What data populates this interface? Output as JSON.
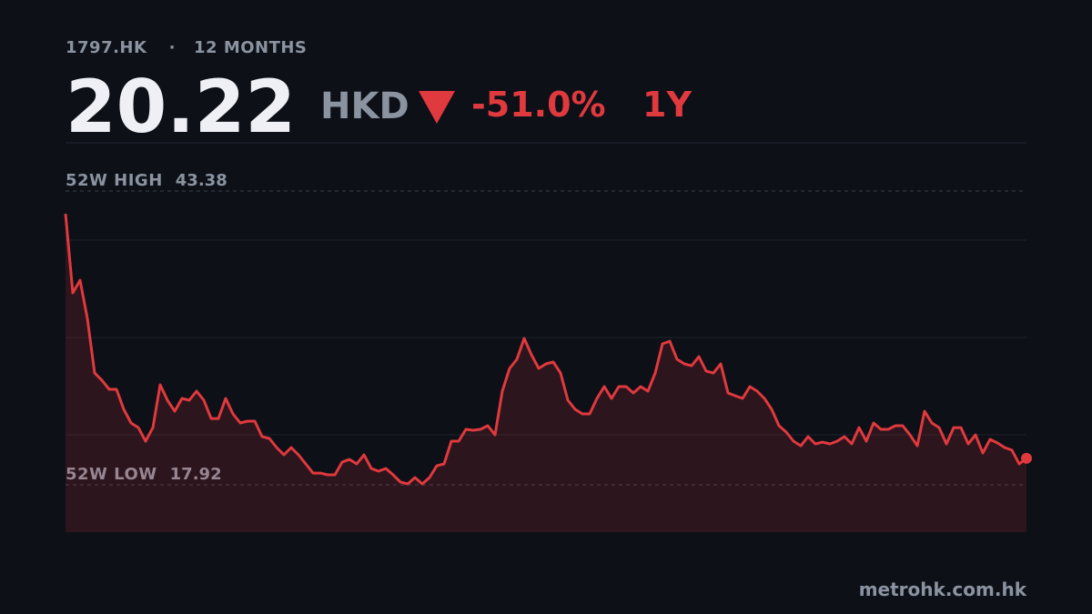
{
  "chart_data": {
    "type": "line",
    "ticker": "1797.HK",
    "separator": "·",
    "period": "12 MONTHS",
    "price": 20.22,
    "currency": "HKD",
    "change": "-51.0%",
    "range": "1Y",
    "high_label": "52W HIGH",
    "high": 43.38,
    "low_label": "52W LOW",
    "low": 17.92,
    "source": "metrohk.com.hk",
    "color": "#e0393e",
    "grid": true,
    "ylim": [
      13.82,
      47.56
    ],
    "values": [
      41.41,
      34.55,
      35.65,
      32.34,
      27.61,
      26.98,
      26.2,
      26.2,
      24.46,
      23.28,
      22.88,
      21.7,
      22.88,
      26.59,
      25.25,
      24.3,
      25.41,
      25.25,
      26.04,
      25.25,
      23.67,
      23.67,
      25.41,
      24.07,
      23.28,
      23.44,
      23.44,
      22.1,
      21.94,
      21.15,
      20.52,
      21.15,
      20.52,
      19.73,
      18.94,
      18.94,
      18.79,
      18.79,
      19.89,
      20.13,
      19.73,
      20.52,
      19.34,
      19.1,
      19.34,
      18.79,
      18.16,
      18.0,
      18.55,
      18.0,
      18.55,
      19.57,
      19.73,
      21.7,
      21.7,
      22.73,
      22.65,
      22.73,
      23.04,
      22.25,
      26.04,
      28.01,
      28.8,
      30.61,
      29.19,
      28.01,
      28.4,
      28.56,
      27.61,
      25.25,
      24.46,
      24.07,
      24.07,
      25.41,
      26.43,
      25.41,
      26.43,
      26.43,
      25.88,
      26.43,
      26.04,
      27.61,
      30.14,
      30.37,
      28.8,
      28.4,
      28.24,
      29.03,
      27.77,
      27.61,
      28.4,
      25.88,
      25.64,
      25.41,
      26.43,
      26.04,
      25.41,
      24.46,
      23.04,
      22.49,
      21.7,
      21.3,
      22.1,
      21.47,
      21.62,
      21.47,
      21.7,
      22.1,
      21.47,
      22.88,
      21.7,
      23.28,
      22.73,
      22.73,
      23.04,
      23.04,
      22.25,
      21.3,
      24.3,
      23.28,
      22.88,
      21.47,
      22.88,
      22.88,
      21.47,
      22.25,
      20.68,
      21.86,
      21.55,
      21.15,
      20.92,
      19.73,
      20.22
    ]
  }
}
